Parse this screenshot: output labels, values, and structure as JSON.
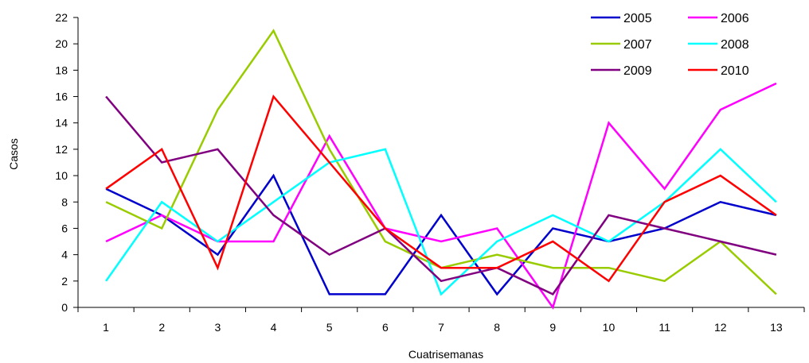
{
  "chart_data": {
    "type": "line",
    "xlabel": "Cuatrisemanas",
    "ylabel": "Casos",
    "x": [
      1,
      2,
      3,
      4,
      5,
      6,
      7,
      8,
      9,
      10,
      11,
      12,
      13
    ],
    "ylim": [
      0,
      22
    ],
    "yticks": [
      0,
      2,
      4,
      6,
      8,
      10,
      12,
      14,
      16,
      18,
      20,
      22
    ],
    "grid": false,
    "legend": "top-right",
    "series": [
      {
        "name": "2005",
        "color": "#0000CC",
        "values": [
          9,
          7,
          4,
          10,
          1,
          1,
          7,
          1,
          6,
          5,
          6,
          8,
          7
        ]
      },
      {
        "name": "2006",
        "color": "#FF00FF",
        "values": [
          5,
          7,
          5,
          5,
          13,
          6,
          5,
          6,
          0,
          14,
          9,
          15,
          17
        ]
      },
      {
        "name": "2007",
        "color": "#99CC00",
        "values": [
          8,
          6,
          15,
          21,
          12,
          5,
          3,
          4,
          3,
          3,
          2,
          5,
          1
        ]
      },
      {
        "name": "2008",
        "color": "#00FFFF",
        "values": [
          2,
          8,
          5,
          8,
          11,
          12,
          1,
          5,
          7,
          5,
          8,
          12,
          8
        ]
      },
      {
        "name": "2009",
        "color": "#800080",
        "values": [
          16,
          11,
          12,
          7,
          4,
          6,
          2,
          3,
          1,
          7,
          6,
          5,
          4
        ]
      },
      {
        "name": "2010",
        "color": "#FF0000",
        "values": [
          9,
          12,
          3,
          16,
          11,
          6,
          3,
          3,
          5,
          2,
          8,
          10,
          7
        ]
      }
    ]
  }
}
